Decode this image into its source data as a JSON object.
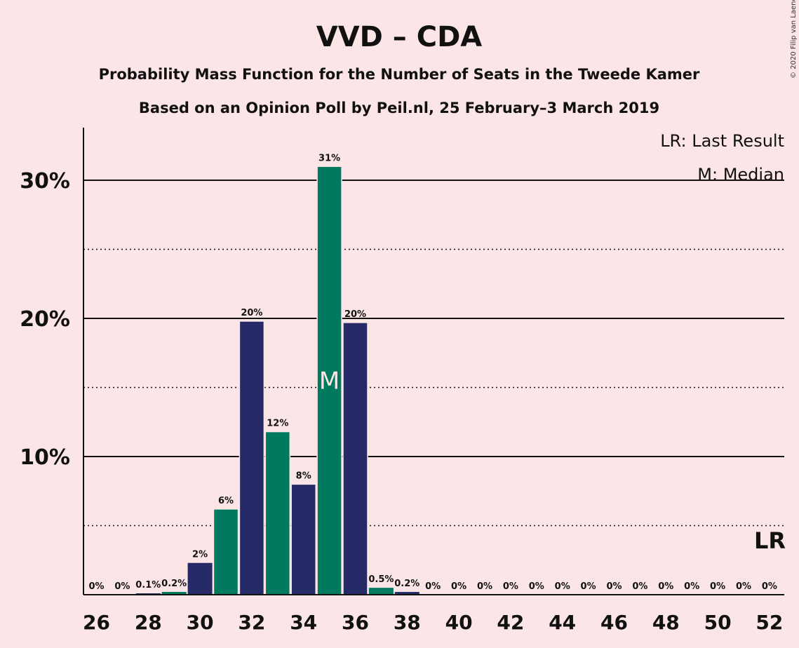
{
  "chart_data": {
    "type": "bar",
    "title": "VVD – CDA",
    "subtitle": "Probability Mass Function for the Number of Seats in the Tweede Kamer",
    "subtitle2": "Based on an Opinion Poll by Peil.nl, 25 February–3 March 2019",
    "copyright": "© 2020 Filip van Laenen",
    "legend": {
      "lr": "LR: Last Result",
      "m": "M: Median",
      "position": "top-right"
    },
    "lr_marker": "LR",
    "median_marker": "M",
    "median_seat": 35,
    "last_result_seat": 52,
    "ylim": [
      0,
      33
    ],
    "yticks": [
      {
        "value": 10,
        "label": "10%"
      },
      {
        "value": 20,
        "label": "20%"
      },
      {
        "value": 30,
        "label": "30%"
      }
    ],
    "dotted_lines": [
      5,
      15,
      25
    ],
    "xticks": [
      26,
      28,
      30,
      32,
      34,
      36,
      38,
      40,
      42,
      44,
      46,
      48,
      50,
      52
    ],
    "colors": {
      "navy": "#262a66",
      "green": "#007a5e",
      "background": "#fbe5e6"
    },
    "seats": [
      26,
      27,
      28,
      29,
      30,
      31,
      32,
      33,
      34,
      35,
      36,
      37,
      38,
      39,
      40,
      41,
      42,
      43,
      44,
      45,
      46,
      47,
      48,
      49,
      50,
      51,
      52
    ],
    "values": [
      0,
      0,
      0.1,
      0.2,
      2.3,
      6.2,
      19.8,
      11.8,
      8.0,
      31.0,
      19.7,
      0.5,
      0.2,
      0,
      0,
      0,
      0,
      0,
      0,
      0,
      0,
      0,
      0,
      0,
      0,
      0,
      0
    ],
    "labels": [
      "0%",
      "0%",
      "0.1%",
      "0.2%",
      "2%",
      "6%",
      "20%",
      "12%",
      "8%",
      "31%",
      "20%",
      "0.5%",
      "0.2%",
      "0%",
      "0%",
      "0%",
      "0%",
      "0%",
      "0%",
      "0%",
      "0%",
      "0%",
      "0%",
      "0%",
      "0%",
      "0%",
      "0%"
    ]
  }
}
